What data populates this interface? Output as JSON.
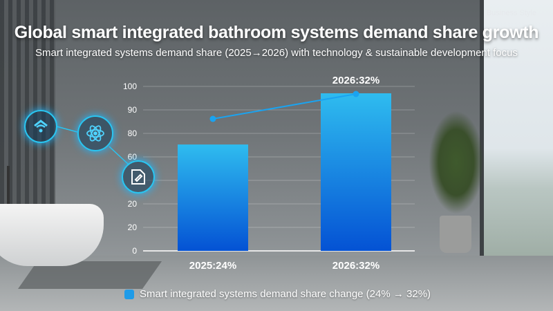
{
  "header": {
    "style_tag": "Business Style",
    "title": "Global smart integrated bathroom systems demand share growth",
    "subtitle": "Smart integrated systems demand share (2025→2026) with technology & sustainable development focus"
  },
  "icons": [
    "smart-home-wifi-icon",
    "atom-technology-icon",
    "document-edit-icon"
  ],
  "chart_data": {
    "type": "bar",
    "categories": [
      "2025",
      "2026"
    ],
    "category_labels": [
      "2025:24%",
      "2026:32%"
    ],
    "values": [
      24,
      32
    ],
    "unit": "%",
    "top_label": "2026:32%",
    "y_tick_labels": [
      "0",
      "20",
      "20",
      "",
      "60",
      "80",
      "90",
      "100"
    ],
    "grid": true,
    "overlay_line": {
      "values": [
        24,
        32
      ],
      "color": "#1aa3f0"
    },
    "legend": {
      "position": "bottom",
      "label": "Smart integrated systems demand share change (24% → 32%)"
    },
    "colors": {
      "bar_top": "#2fbcef",
      "bar_bottom": "#0452d4",
      "line": "#1aa3f0"
    }
  }
}
